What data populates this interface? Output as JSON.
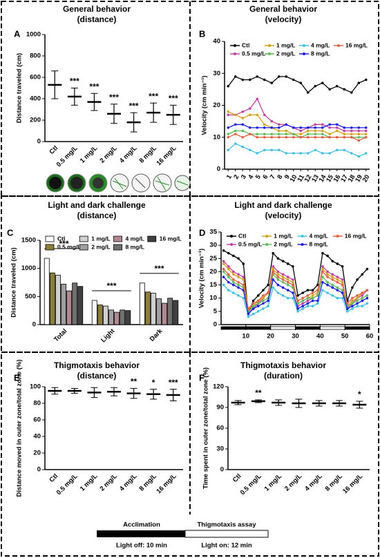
{
  "chart_data": [
    {
      "type": "dot",
      "label": "A",
      "title": [
        "General behavior",
        "(distance)"
      ],
      "ylabel": "Distance traveled (cm)",
      "categories": [
        "Ctl",
        "0.5 mg/L",
        "1 mg/L",
        "2 mg/L",
        "4 mg/L",
        "8 mg/L",
        "16 mg/L"
      ],
      "values": [
        530,
        420,
        370,
        260,
        180,
        270,
        250
      ],
      "errors": [
        130,
        80,
        80,
        90,
        90,
        90,
        90
      ],
      "annotations": [
        null,
        "***",
        "***",
        "***",
        "***",
        "***",
        "***"
      ],
      "ylim": [
        0,
        1000
      ],
      "yticks": [
        0,
        200,
        400,
        600,
        800,
        1000
      ],
      "color": "#000000"
    },
    {
      "type": "line",
      "label": "B",
      "title": [
        "General behavior",
        "(velocity)"
      ],
      "ylabel": "Velocity (cm min⁻¹)",
      "x": [
        1,
        2,
        3,
        4,
        5,
        6,
        7,
        8,
        9,
        10,
        11,
        12,
        13,
        14,
        15,
        16,
        17,
        18,
        19,
        20
      ],
      "xlim": [
        0.5,
        20.5
      ],
      "ylim": [
        0,
        40
      ],
      "yticks": [
        0,
        10,
        20,
        30,
        40
      ],
      "series": [
        {
          "name": "Ctl",
          "color": "#000000",
          "values": [
            26,
            29,
            28,
            28,
            29,
            28,
            27,
            29,
            29,
            28,
            27,
            24,
            26,
            27,
            25,
            26,
            25,
            24,
            27,
            28
          ]
        },
        {
          "name": "0.5 mg/L",
          "color": "#c040a0",
          "values": [
            17,
            17,
            18,
            19,
            22,
            17,
            15,
            14,
            14,
            13,
            12,
            13,
            14,
            14,
            13,
            13,
            12,
            12,
            12,
            12
          ]
        },
        {
          "name": "1 mg/L",
          "color": "#d4a017",
          "values": [
            18,
            17,
            16,
            17,
            17,
            14,
            13,
            12,
            12,
            11,
            11,
            12,
            12,
            12,
            11,
            12,
            11,
            11,
            11,
            11
          ]
        },
        {
          "name": "2 mg/L",
          "color": "#5cb85c",
          "values": [
            11,
            12,
            12,
            11,
            11,
            11,
            11,
            11,
            11,
            11,
            10,
            11,
            11,
            11,
            10,
            10,
            10,
            10,
            10,
            10
          ]
        },
        {
          "name": "4 mg/L",
          "color": "#40c0e0",
          "values": [
            6,
            8,
            7,
            6,
            5,
            6,
            6,
            6,
            5,
            5,
            5,
            5,
            6,
            5,
            5,
            6,
            6,
            5,
            4,
            5
          ]
        },
        {
          "name": "8 mg/L",
          "color": "#1a1adc",
          "values": [
            13,
            14,
            14,
            13,
            13,
            13,
            13,
            13,
            14,
            13,
            13,
            13,
            13,
            13,
            14,
            14,
            13,
            13,
            13,
            13
          ]
        },
        {
          "name": "16 mg/L",
          "color": "#e06040",
          "values": [
            10,
            11,
            10,
            11,
            10,
            10,
            10,
            10,
            10,
            10,
            10,
            10,
            10,
            10,
            10,
            10,
            10,
            10,
            9,
            10
          ]
        }
      ]
    },
    {
      "type": "bar",
      "label": "C",
      "title": [
        "Light and dark challenge",
        "(distance)"
      ],
      "ylabel": "Distance traveled (cm)",
      "categories": [
        "Total",
        "Light",
        "Dark"
      ],
      "ylim": [
        0,
        1500
      ],
      "yticks": [
        0,
        500,
        1000,
        1500
      ],
      "annotations": [
        "***",
        "***",
        "***"
      ],
      "series": [
        {
          "name": "Ctl",
          "color": "#ffffff",
          "values": [
            1180,
            430,
            740
          ]
        },
        {
          "name": "0.5 mg/L",
          "color": "#8b7d3a",
          "values": [
            920,
            350,
            580
          ]
        },
        {
          "name": "1 mg/L",
          "color": "#d0d0d0",
          "values": [
            880,
            330,
            560
          ]
        },
        {
          "name": "2 mg/L",
          "color": "#a0a0a0",
          "values": [
            720,
            260,
            460
          ]
        },
        {
          "name": "4 mg/L",
          "color": "#b08890",
          "values": [
            600,
            220,
            380
          ]
        },
        {
          "name": "8 mg/L",
          "color": "#707070",
          "values": [
            740,
            260,
            470
          ]
        },
        {
          "name": "16 mg/L",
          "color": "#404040",
          "values": [
            680,
            250,
            430
          ]
        }
      ]
    },
    {
      "type": "line",
      "label": "D",
      "title": [
        "Light and dark challenge",
        "(velocity)"
      ],
      "ylabel": "Velocity (cm min⁻¹)",
      "x": [
        1,
        3,
        5,
        7,
        9,
        11,
        13,
        15,
        17,
        19,
        21,
        23,
        25,
        27,
        29,
        31,
        33,
        35,
        37,
        39,
        41,
        43,
        45,
        47,
        49,
        51,
        53,
        55,
        57,
        59
      ],
      "xlim": [
        0,
        60
      ],
      "xticks": [
        10,
        20,
        30,
        40,
        50,
        60
      ],
      "ylim": [
        0,
        35
      ],
      "yticks": [
        0,
        5,
        10,
        15,
        20,
        25,
        30,
        35
      ],
      "series": [
        {
          "name": "Ctl",
          "color": "#000000",
          "values": [
            28,
            27,
            26,
            25,
            23,
            4,
            9,
            11,
            13,
            15,
            27,
            25,
            24,
            23,
            22,
            11,
            12,
            13,
            13,
            15,
            27,
            26,
            24,
            23,
            22,
            9,
            14,
            17,
            19,
            21
          ]
        },
        {
          "name": "0.5 mg/L",
          "color": "#c040a0",
          "values": [
            24,
            22,
            20,
            19,
            18,
            5,
            6,
            8,
            10,
            12,
            22,
            20,
            19,
            18,
            17,
            7,
            8,
            9,
            10,
            11,
            22,
            20,
            19,
            18,
            17,
            6,
            8,
            10,
            11,
            13
          ]
        },
        {
          "name": "1 mg/L",
          "color": "#d4a017",
          "values": [
            23,
            21,
            19,
            18,
            17,
            6,
            7,
            9,
            10,
            12,
            21,
            19,
            18,
            17,
            16,
            8,
            9,
            10,
            11,
            12,
            21,
            19,
            18,
            17,
            16,
            7,
            9,
            10,
            12,
            13
          ]
        },
        {
          "name": "2 mg/L",
          "color": "#5cb85c",
          "values": [
            20,
            18,
            16,
            15,
            14,
            5,
            7,
            8,
            9,
            10,
            19,
            17,
            16,
            15,
            14,
            8,
            9,
            10,
            10,
            11,
            18,
            16,
            15,
            14,
            13,
            7,
            8,
            9,
            10,
            11
          ]
        },
        {
          "name": "4 mg/L",
          "color": "#40c0e0",
          "values": [
            15,
            13,
            12,
            11,
            10,
            3,
            4,
            5,
            6,
            7,
            14,
            12,
            11,
            10,
            10,
            5,
            6,
            7,
            7,
            8,
            13,
            12,
            11,
            10,
            10,
            5,
            6,
            7,
            7,
            8
          ]
        },
        {
          "name": "8 mg/L",
          "color": "#1a1adc",
          "values": [
            18,
            16,
            15,
            14,
            13,
            4,
            6,
            7,
            8,
            9,
            17,
            15,
            14,
            13,
            12,
            6,
            7,
            8,
            9,
            9,
            16,
            15,
            14,
            13,
            12,
            6,
            7,
            8,
            9,
            10
          ]
        },
        {
          "name": "16 mg/L",
          "color": "#e06040",
          "values": [
            21,
            19,
            17,
            16,
            15,
            6,
            8,
            9,
            11,
            12,
            20,
            18,
            17,
            16,
            15,
            9,
            10,
            11,
            12,
            13,
            20,
            18,
            17,
            16,
            15,
            8,
            10,
            11,
            12,
            13
          ]
        }
      ]
    },
    {
      "type": "dot",
      "label": "E",
      "title": [
        "Thigmotaxis behavior",
        "(distance)"
      ],
      "ylabel": "Distance moved in outer zone/total zone (%)",
      "categories": [
        "Ctl",
        "0.5 mg/L",
        "1 mg/L",
        "2 mg/L",
        "4 mg/L",
        "8 mg/L",
        "16 mg/L"
      ],
      "values": [
        95,
        95,
        93,
        94,
        92,
        91,
        90
      ],
      "errors": [
        4,
        3,
        6,
        5,
        6,
        6,
        7
      ],
      "annotations": [
        null,
        null,
        null,
        null,
        "**",
        "*",
        "***"
      ],
      "ylim": [
        0,
        100
      ],
      "yticks": [
        0,
        20,
        40,
        60,
        80,
        100
      ],
      "color": "#000000"
    },
    {
      "type": "dot",
      "label": "F",
      "title": [
        "Thigmotaxis behavior",
        "(duration)"
      ],
      "ylabel": "Time spent in outer zone/total zone (%)",
      "categories": [
        "Ctl",
        "0.5 mg/L",
        "1 mg/L",
        "2 mg/L",
        "4 mg/L",
        "8 mg/L",
        "16 mg/L"
      ],
      "values": [
        97,
        99,
        97,
        96,
        96,
        96,
        94
      ],
      "errors": [
        3,
        2,
        4,
        6,
        4,
        4,
        5
      ],
      "annotations": [
        null,
        "**",
        null,
        null,
        null,
        null,
        "*"
      ],
      "ylim": [
        0,
        120
      ],
      "yticks": [
        0,
        30,
        60,
        90,
        120
      ],
      "color": "#000000"
    }
  ],
  "timeline": {
    "phases": [
      "Acclimation",
      "Thigmotaxis assay"
    ],
    "notes": [
      "Light off: 10 min",
      "Light on: 12 min"
    ]
  }
}
